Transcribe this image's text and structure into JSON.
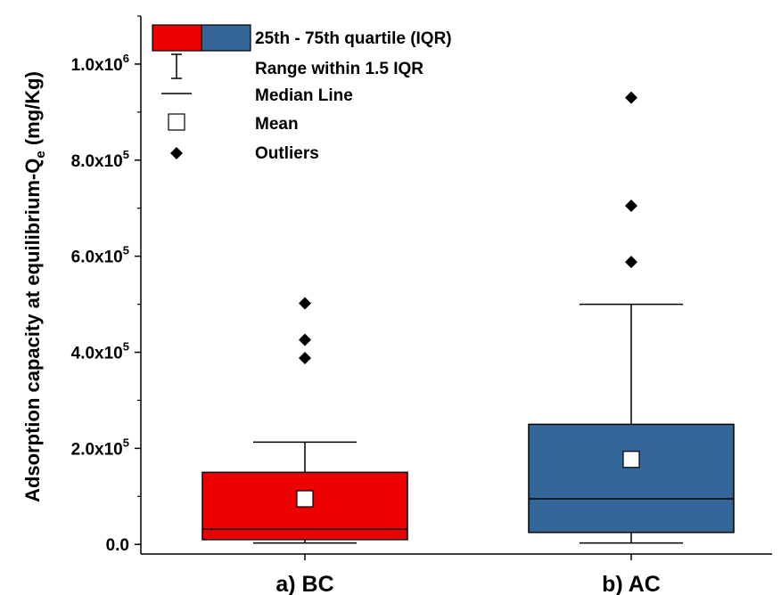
{
  "chart_data": {
    "type": "box",
    "ylabel_main": "Adsorption capacity at equilibrium-Q",
    "ylabel_sub": "e",
    "ylabel_unit": " (mg/Kg)",
    "xlabel": "",
    "ylim": [
      -20000,
      1100000
    ],
    "yticks": [
      {
        "value": 0,
        "base": "0.0",
        "exp": ""
      },
      {
        "value": 200000,
        "base": "2.0x10",
        "exp": "5"
      },
      {
        "value": 400000,
        "base": "4.0x10",
        "exp": "5"
      },
      {
        "value": 600000,
        "base": "6.0x10",
        "exp": "5"
      },
      {
        "value": 800000,
        "base": "8.0x10",
        "exp": "5"
      },
      {
        "value": 1000000,
        "base": "1.0x10",
        "exp": "6"
      }
    ],
    "yminor": [
      100000,
      300000,
      500000,
      700000,
      900000,
      1100000
    ],
    "categories": [
      "a) BC",
      "b) AC"
    ],
    "boxes": [
      {
        "name": "a) BC",
        "color": "#ee0000",
        "whisker_low": 3000,
        "q1": 10000,
        "median": 32000,
        "q3": 150000,
        "whisker_high": 213000,
        "mean": 95000,
        "outliers": [
          388000,
          426000,
          502000
        ]
      },
      {
        "name": "b) AC",
        "color": "#336699",
        "whisker_low": 3000,
        "q1": 25000,
        "median": 95000,
        "q3": 250000,
        "whisker_high": 500000,
        "mean": 177000,
        "outliers": [
          588000,
          705000,
          930000
        ]
      }
    ],
    "legend": [
      {
        "key": "iqr",
        "label": "25th - 75th quartile (IQR)"
      },
      {
        "key": "range",
        "label": "Range within 1.5 IQR"
      },
      {
        "key": "median",
        "label": "Median Line"
      },
      {
        "key": "mean",
        "label": "Mean"
      },
      {
        "key": "outliers",
        "label": "Outliers"
      }
    ],
    "legend_placement": "top-left",
    "grid": false
  }
}
